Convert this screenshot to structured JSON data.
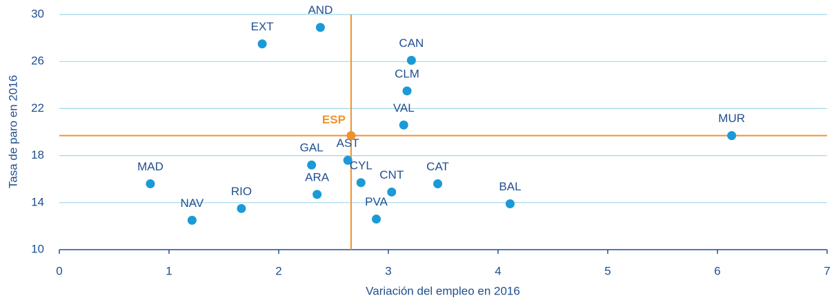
{
  "chart_data": {
    "type": "scatter",
    "xlabel": "Variación del empleo en 2016",
    "ylabel": "Tasa de paro en 2016",
    "xlim": [
      0,
      7
    ],
    "xticks": [
      0,
      1,
      2,
      3,
      4,
      5,
      6,
      7
    ],
    "ylim": [
      10,
      30
    ],
    "yticks": [
      10,
      14,
      18,
      22,
      26,
      30
    ],
    "grid": true,
    "series": [
      {
        "color": "#1a9ad6",
        "labels": [
          "AND",
          "EXT",
          "CAN",
          "CLM",
          "VAL",
          "MUR",
          "AST",
          "GAL",
          "MAD",
          "CYL",
          "CAT",
          "CNT",
          "ARA",
          "BAL",
          "RIO",
          "NAV",
          "PVA"
        ],
        "x": [
          2.38,
          1.85,
          3.21,
          3.17,
          3.14,
          6.13,
          2.63,
          2.3,
          0.83,
          2.75,
          3.45,
          3.03,
          2.35,
          4.11,
          1.66,
          1.21,
          2.89
        ],
        "values": [
          28.9,
          27.5,
          26.1,
          23.5,
          20.6,
          19.7,
          17.6,
          17.2,
          15.6,
          15.7,
          15.6,
          14.9,
          14.7,
          13.9,
          13.5,
          12.5,
          12.6
        ]
      },
      {
        "color": "#f0922b",
        "crosshair": true,
        "bold": true,
        "labels": [
          "ESP"
        ],
        "x": [
          2.66
        ],
        "values": [
          19.7
        ]
      }
    ]
  }
}
